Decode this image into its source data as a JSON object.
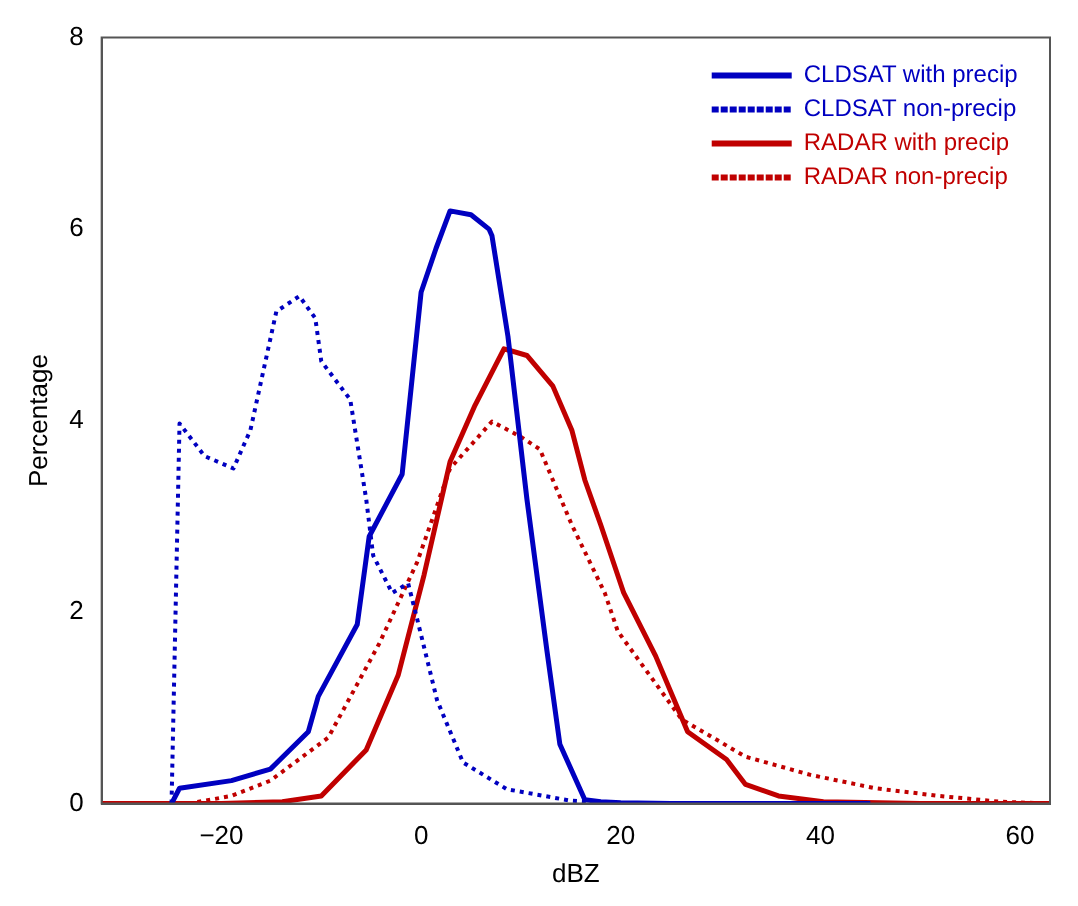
{
  "chart_data": {
    "type": "line",
    "xlabel": "dBZ",
    "ylabel": "Percentage",
    "xlim": [
      -32,
      63
    ],
    "xticks": [
      -20,
      0,
      20,
      40,
      60
    ],
    "ylim": [
      0,
      8
    ],
    "yticks": [
      0,
      2,
      4,
      6,
      8
    ],
    "grid": false,
    "legend": "top right",
    "marker": "none",
    "series": [
      {
        "name": "CLDSAT with precip",
        "color": "#0000c0",
        "line_style": "solid",
        "x": [
          -25,
          -24.2,
          -19,
          -15.1,
          -11.3,
          -10.3,
          -6.4,
          -5.2,
          -1.9,
          0,
          1.5,
          2.9,
          5,
          6.8,
          7.1,
          8.7,
          10.6,
          12.6,
          13.9,
          16.4,
          18,
          20,
          25,
          45
        ],
        "values": [
          0,
          0.16,
          0.24,
          0.36,
          0.75,
          1.12,
          1.87,
          2.79,
          3.44,
          5.34,
          5.8,
          6.19,
          6.15,
          6.0,
          5.93,
          4.88,
          3.18,
          1.6,
          0.62,
          0.04,
          0.02,
          0.01,
          0,
          0
        ]
      },
      {
        "name": "CLDSAT non-precip",
        "color": "#0000c0",
        "line_style": "dotted",
        "x": [
          -25,
          -24.2,
          -21.7,
          -18.8,
          -17.1,
          -14.5,
          -12.2,
          -10.6,
          -10,
          -7.1,
          -5.5,
          -4.8,
          -2.9,
          -1.3,
          -0.4,
          1.6,
          4.2,
          8.6,
          15,
          20
        ],
        "values": [
          0,
          3.97,
          3.63,
          3.5,
          3.9,
          5.14,
          5.3,
          5.07,
          4.62,
          4.22,
          3.18,
          2.59,
          2.2,
          2.3,
          1.93,
          1.08,
          0.43,
          0.15,
          0.03,
          0
        ]
      },
      {
        "name": "RADAR with precip",
        "color": "#c00000",
        "line_style": "solid",
        "x": [
          -32,
          -20,
          -13.9,
          -10,
          -5.5,
          -2.3,
          0.3,
          2.9,
          5.4,
          8.3,
          10.6,
          13.2,
          15.1,
          16.4,
          18,
          20.3,
          23.5,
          26.7,
          30.6,
          32.5,
          35.8,
          40.3,
          50,
          63
        ],
        "values": [
          0,
          0,
          0.02,
          0.08,
          0.56,
          1.34,
          2.39,
          3.57,
          4.16,
          4.75,
          4.68,
          4.36,
          3.9,
          3.38,
          2.91,
          2.2,
          1.54,
          0.75,
          0.46,
          0.2,
          0.08,
          0.02,
          0,
          0
        ]
      },
      {
        "name": "RADAR non-precip",
        "color": "#c00000",
        "line_style": "dotted",
        "x": [
          -23.3,
          -19,
          -15.1,
          -9.3,
          -4.2,
          -0.4,
          2.9,
          7.1,
          10,
          11.9,
          15.1,
          18.4,
          19.7,
          26.1,
          32.5,
          39,
          45.5,
          51.9,
          58,
          63
        ],
        "values": [
          0,
          0.08,
          0.24,
          0.69,
          1.67,
          2.52,
          3.5,
          3.99,
          3.83,
          3.7,
          2.91,
          2.2,
          1.8,
          0.88,
          0.49,
          0.3,
          0.16,
          0.08,
          0.02,
          0
        ]
      }
    ]
  }
}
